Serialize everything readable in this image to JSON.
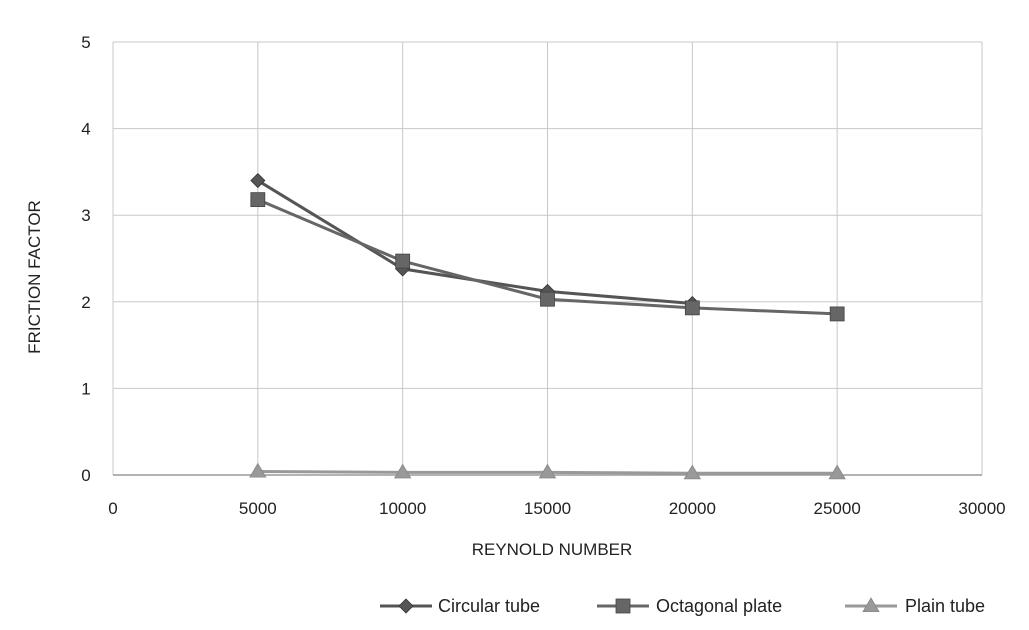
{
  "chart_data": {
    "type": "line",
    "title": "",
    "xlabel": "REYNOLD NUMBER",
    "ylabel": "FRICTION FACTOR",
    "xlim": [
      0,
      30000
    ],
    "ylim": [
      0,
      5
    ],
    "x_ticks": [
      "0",
      "5000",
      "10000",
      "15000",
      "20000",
      "25000",
      "30000"
    ],
    "y_ticks": [
      "0",
      "1",
      "2",
      "3",
      "4",
      "5"
    ],
    "grid": true,
    "legend_position": "bottom-right",
    "series": [
      {
        "name": "Circular tube",
        "marker": "diamond",
        "color": "#555555",
        "x": [
          5000,
          10000,
          15000,
          20000
        ],
        "y": [
          3.4,
          2.38,
          2.12,
          1.98
        ]
      },
      {
        "name": "Octagonal plate",
        "marker": "square",
        "color": "#666666",
        "x": [
          5000,
          10000,
          15000,
          20000,
          25000
        ],
        "y": [
          3.18,
          2.47,
          2.03,
          1.93,
          1.86
        ]
      },
      {
        "name": "Plain tube",
        "marker": "triangle",
        "color": "#999999",
        "x": [
          5000,
          10000,
          15000,
          20000,
          25000
        ],
        "y": [
          0.04,
          0.03,
          0.03,
          0.02,
          0.02
        ]
      }
    ]
  }
}
